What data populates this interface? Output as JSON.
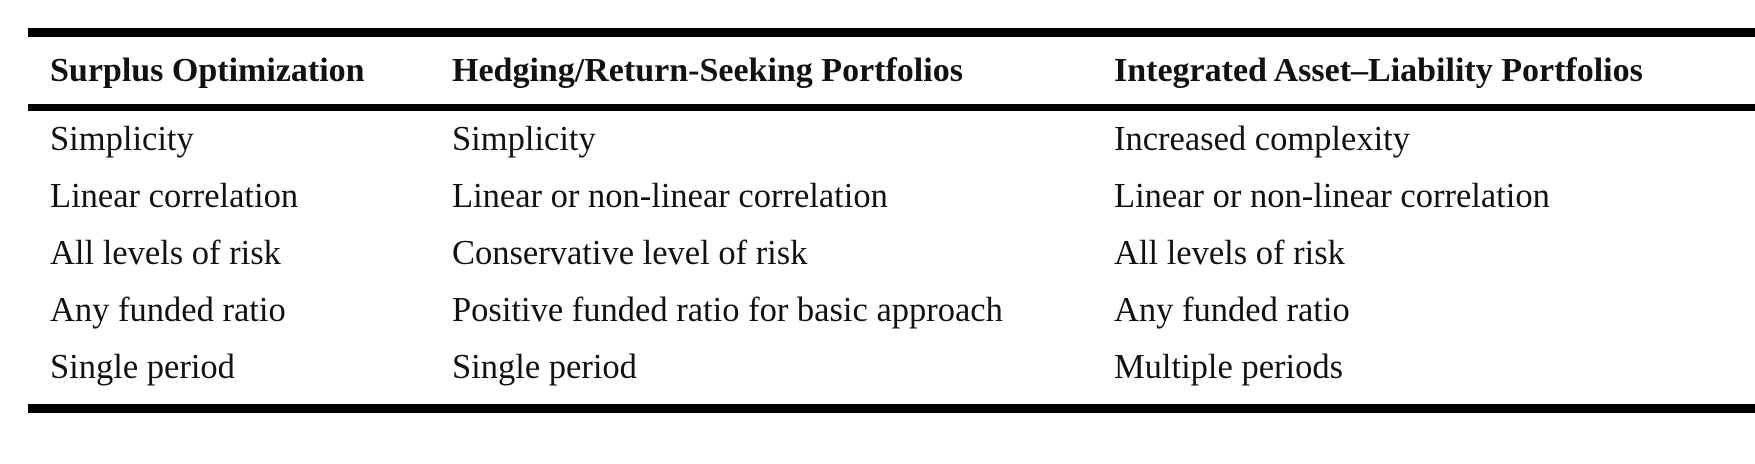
{
  "table": {
    "headers": [
      "Surplus Optimization",
      "Hedging/Return-Seeking Portfolios",
      "Integrated Asset–Liability Portfolios"
    ],
    "rows": [
      [
        "Simplicity",
        "Simplicity",
        "Increased complexity"
      ],
      [
        "Linear correlation",
        "Linear or non-linear correlation",
        "Linear or non-linear correlation"
      ],
      [
        "All levels of risk",
        "Conservative level of risk",
        "All levels of risk"
      ],
      [
        "Any funded ratio",
        "Positive funded ratio for basic approach",
        "Any funded ratio"
      ],
      [
        "Single period",
        "Single period",
        "Multiple periods"
      ]
    ]
  }
}
